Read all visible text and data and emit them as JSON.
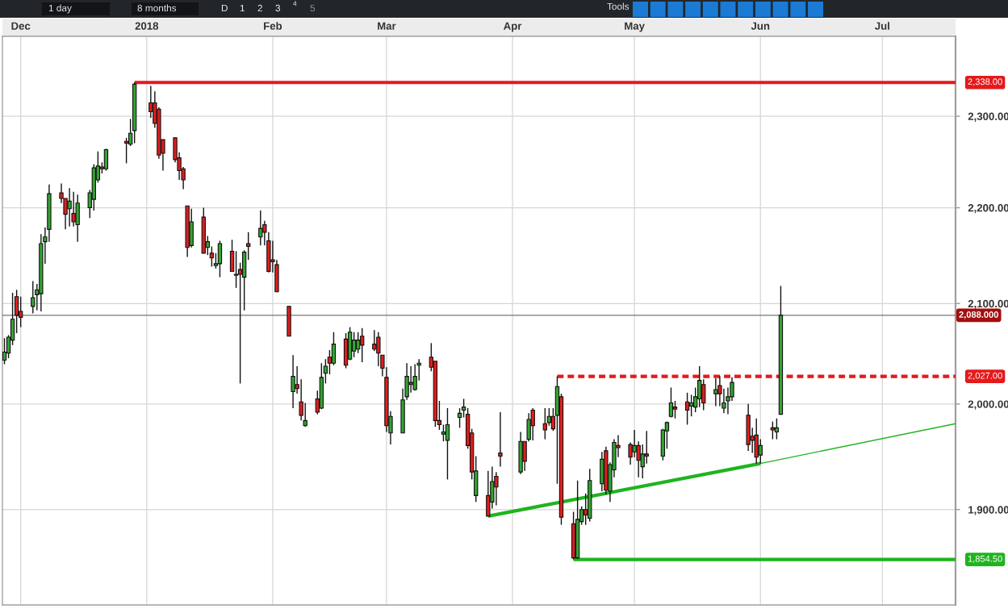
{
  "chart_data": {
    "type": "candlestick",
    "annotations": [
      "1 day",
      "8 months",
      "D",
      "1",
      "2",
      "3",
      "4",
      "5",
      "Tools"
    ],
    "x": [
      "2017-11-27",
      "2017-11-28",
      "2017-11-29",
      "2017-11-30",
      "2017-12-01",
      "2017-12-04",
      "2017-12-05",
      "2017-12-06",
      "2017-12-07",
      "2017-12-08",
      "2017-12-11",
      "2017-12-12",
      "2017-12-13",
      "2017-12-14",
      "2017-12-15",
      "2017-12-18",
      "2017-12-19",
      "2017-12-20",
      "2017-12-21",
      "2017-12-22",
      "2017-12-27",
      "2017-12-28",
      "2017-12-29",
      "2018-01-02",
      "2018-01-03",
      "2018-01-04",
      "2018-01-05",
      "2018-01-08",
      "2018-01-09",
      "2018-01-10",
      "2018-01-11",
      "2018-01-12",
      "2018-01-15",
      "2018-01-16",
      "2018-01-17",
      "2018-01-18",
      "2018-01-19",
      "2018-01-22",
      "2018-01-23",
      "2018-01-24",
      "2018-01-25",
      "2018-01-26",
      "2018-01-29",
      "2018-01-30",
      "2018-01-31",
      "2018-02-01",
      "2018-02-02",
      "2018-02-05",
      "2018-02-06",
      "2018-02-07",
      "2018-02-08",
      "2018-02-09",
      "2018-02-12",
      "2018-02-13",
      "2018-02-14",
      "2018-02-15",
      "2018-02-16",
      "2018-02-19",
      "2018-02-20",
      "2018-02-21",
      "2018-02-22",
      "2018-02-23",
      "2018-02-26",
      "2018-02-27",
      "2018-02-28",
      "2018-03-01",
      "2018-03-02",
      "2018-03-05",
      "2018-03-06",
      "2018-03-07",
      "2018-03-08",
      "2018-03-09",
      "2018-03-12",
      "2018-03-13",
      "2018-03-14",
      "2018-03-15",
      "2018-03-16",
      "2018-03-19",
      "2018-03-20",
      "2018-03-21",
      "2018-03-22",
      "2018-03-23",
      "2018-03-26",
      "2018-03-27",
      "2018-03-28",
      "2018-03-29",
      "2018-04-03",
      "2018-04-04",
      "2018-04-05",
      "2018-04-06",
      "2018-04-09",
      "2018-04-10",
      "2018-04-11",
      "2018-04-12",
      "2018-04-13",
      "2018-04-16",
      "2018-04-17",
      "2018-04-18",
      "2018-04-19",
      "2018-04-20",
      "2018-04-23",
      "2018-04-24",
      "2018-04-25",
      "2018-04-26",
      "2018-04-27",
      "2018-04-30",
      "2018-05-01",
      "2018-05-02",
      "2018-05-03",
      "2018-05-04",
      "2018-05-08",
      "2018-05-09",
      "2018-05-10",
      "2018-05-11",
      "2018-05-14",
      "2018-05-15",
      "2018-05-16",
      "2018-05-17",
      "2018-05-18",
      "2018-05-21",
      "2018-05-22",
      "2018-05-23",
      "2018-05-24",
      "2018-05-25",
      "2018-05-29",
      "2018-05-30",
      "2018-05-31",
      "2018-06-01",
      "2018-06-04",
      "2018-06-05",
      "2018-06-06"
    ],
    "ohlc": [
      [
        2043,
        2065,
        2039,
        2051
      ],
      [
        2050,
        2068,
        2045,
        2066
      ],
      [
        2063,
        2111,
        2058,
        2084
      ],
      [
        2107,
        2114,
        2070,
        2088
      ],
      [
        2092,
        2107,
        2076,
        2086
      ],
      [
        2097,
        2123,
        2090,
        2106
      ],
      [
        2109,
        2120,
        2093,
        2114
      ],
      [
        2110,
        2172,
        2092,
        2162
      ],
      [
        2164,
        2179,
        2141,
        2169
      ],
      [
        2177,
        2225,
        2164,
        2215
      ],
      [
        2216,
        2226,
        2205,
        2210
      ],
      [
        2210,
        2210,
        2177,
        2193
      ],
      [
        2199,
        2221,
        2180,
        2207
      ],
      [
        2194,
        2217,
        2180,
        2185
      ],
      [
        2182,
        2214,
        2164,
        2205
      ],
      [
        2200,
        2219,
        2189,
        2216
      ],
      [
        2209,
        2247,
        2197,
        2243
      ],
      [
        2230,
        2261,
        2227,
        2245
      ],
      [
        2244,
        2249,
        2237,
        2242
      ],
      [
        2242,
        2264,
        2240,
        2263
      ],
      [
        2272,
        2276,
        2248,
        2270
      ],
      [
        2269,
        2297,
        2267,
        2281
      ],
      [
        2284,
        2338,
        2270,
        2336
      ],
      [
        2315,
        2334,
        2298,
        2305
      ],
      [
        2315,
        2328,
        2287,
        2292
      ],
      [
        2308,
        2310,
        2253,
        2257
      ],
      [
        2274,
        2274,
        2240,
        2259
      ],
      [
        2276,
        2276,
        2249,
        2252
      ],
      [
        2254,
        2260,
        2230,
        2240
      ],
      [
        2242,
        2244,
        2220,
        2230
      ],
      [
        2202,
        2202,
        2148,
        2158
      ],
      [
        2160,
        2199,
        2158,
        2185
      ],
      [
        2190,
        2200,
        2152,
        2152
      ],
      [
        2158,
        2170,
        2150,
        2164
      ],
      [
        2152,
        2159,
        2138,
        2147
      ],
      [
        2139,
        2152,
        2136,
        2141
      ],
      [
        2141,
        2165,
        2127,
        2162
      ],
      [
        2154,
        2166,
        2133,
        2133
      ],
      [
        2129,
        2154,
        2116,
        2130
      ],
      [
        2135,
        2142,
        2020,
        2130
      ],
      [
        2127,
        2155,
        2093,
        2153
      ],
      [
        2162,
        2174,
        2145,
        2159
      ],
      [
        2169,
        2197,
        2160,
        2178
      ],
      [
        2182,
        2186,
        2160,
        2174
      ],
      [
        2165,
        2174,
        2132,
        2133
      ],
      [
        2145,
        2165,
        2132,
        2143
      ],
      [
        2140,
        2145,
        2112,
        2112
      ],
      [
        2097,
        2097,
        2067,
        2067
      ],
      [
        2012,
        2048,
        1996,
        2027
      ],
      [
        2019,
        2037,
        2010,
        2015
      ],
      [
        2002,
        2024,
        1984,
        1989
      ],
      [
        1979,
        2001,
        1978,
        1984
      ],
      [
        2005,
        2013,
        1990,
        1992
      ],
      [
        1996,
        2040,
        1995,
        2026
      ],
      [
        2030,
        2044,
        2020,
        2037
      ],
      [
        2046,
        2053,
        2029,
        2040
      ],
      [
        2040,
        2071,
        2038,
        2059
      ],
      [
        2064,
        2070,
        2035,
        2038
      ],
      [
        2044,
        2076,
        2043,
        2071
      ],
      [
        2052,
        2071,
        2046,
        2063
      ],
      [
        2054,
        2071,
        2050,
        2063
      ],
      [
        2067,
        2075,
        2041,
        2058
      ],
      [
        2059,
        2073,
        2052,
        2054
      ],
      [
        2066,
        2071,
        2037,
        2050
      ],
      [
        2048,
        2048,
        2027,
        2035
      ],
      [
        2026,
        2036,
        1973,
        1979
      ],
      [
        1972,
        1993,
        1961,
        1988
      ],
      [
        1972,
        2015,
        1972,
        2004
      ],
      [
        2007,
        2040,
        2004,
        2027
      ],
      [
        2021,
        2037,
        2011,
        2019
      ],
      [
        2014,
        2039,
        2013,
        2027
      ],
      [
        2038,
        2044,
        2023,
        2040
      ],
      [
        2046,
        2060,
        2032,
        2036
      ],
      [
        2042,
        2042,
        1978,
        1984
      ],
      [
        1984,
        2003,
        1975,
        1980
      ],
      [
        1971,
        1980,
        1964,
        1973
      ],
      [
        1965,
        1996,
        1928,
        1980
      ],
      [
        1987,
        1996,
        1977,
        1991
      ],
      [
        1994,
        2005,
        1987,
        1997
      ],
      [
        1990,
        1996,
        1957,
        1960
      ],
      [
        1972,
        1976,
        1928,
        1935
      ],
      [
        1913,
        1950,
        1907,
        1936
      ],
      [
        1913,
        1936,
        1894,
        1894
      ],
      [
        1907,
        1940,
        1901,
        1926
      ],
      [
        1931,
        1935,
        1904,
        1921
      ],
      [
        1953,
        1992,
        1940,
        1950
      ],
      [
        1935,
        1973,
        1933,
        1964
      ],
      [
        1964,
        1964,
        1936,
        1945
      ],
      [
        1966,
        1991,
        1964,
        1985
      ],
      [
        1994,
        1996,
        1965,
        1979
      ],
      [
        1981,
        1996,
        1966,
        1975
      ],
      [
        1982,
        1996,
        1979,
        1988
      ],
      [
        1988,
        1996,
        1974,
        1976
      ],
      [
        1989,
        2027,
        1924,
        2017
      ],
      [
        2007,
        2010,
        1886,
        1893
      ],
      [
        1887,
        1898,
        1854.5,
        1856
      ],
      [
        1856,
        1927,
        1855,
        1891
      ],
      [
        1889,
        1903,
        1886,
        1900
      ],
      [
        1900,
        1915,
        1886,
        1895
      ],
      [
        1892,
        1938,
        1889,
        1927
      ],
      [
        1924,
        1954,
        1917,
        1947
      ],
      [
        1955,
        1959,
        1914,
        1918
      ],
      [
        1917,
        1944,
        1907,
        1942
      ],
      [
        1937,
        1966,
        1930,
        1963
      ],
      [
        1960,
        1970,
        1949,
        1958
      ],
      [
        1961,
        1963,
        1942,
        1949
      ],
      [
        1954,
        1975,
        1949,
        1960
      ],
      [
        1960,
        1964,
        1930,
        1946
      ],
      [
        1940,
        1961,
        1929,
        1952
      ],
      [
        1952,
        1974,
        1943,
        1950
      ],
      [
        1950,
        1976,
        1946,
        1975
      ],
      [
        1974,
        1983,
        1957,
        1982
      ],
      [
        1988,
        2016,
        1987,
        2001
      ],
      [
        1997,
        2003,
        1986,
        1995
      ],
      [
        2002,
        2011,
        1980,
        1994
      ],
      [
        1998,
        2009,
        1988,
        2001
      ],
      [
        1997,
        2016,
        1992,
        2007
      ],
      [
        2005,
        2037,
        1997,
        2023
      ],
      [
        2019,
        2024,
        1994,
        2001
      ],
      [
        2010,
        2025,
        1998,
        2014
      ],
      [
        2018,
        2027,
        1998,
        2010
      ],
      [
        1996,
        2015,
        1991,
        2001
      ],
      [
        2003,
        2016,
        1990,
        2007
      ],
      [
        2007,
        2026,
        2003,
        2021
      ],
      [
        1989,
        2000,
        1955,
        1961
      ],
      [
        1969,
        1977,
        1953,
        1965
      ],
      [
        1970,
        1986,
        1943,
        1949
      ],
      [
        1951,
        1966,
        1943,
        1960
      ],
      [
        1977,
        1983,
        1966,
        1975
      ],
      [
        1973,
        1986,
        1966,
        1977
      ],
      [
        1990,
        2118,
        1990,
        2088
      ]
    ],
    "colors": [
      "#33a532",
      "#33a532",
      "#33a532",
      "#e01e1e",
      "#e01e1e",
      "#33a532",
      "#33a532",
      "#33a532",
      "#33a532",
      "#33a532",
      "#e01e1e",
      "#e01e1e",
      "#33a532",
      "#e01e1e",
      "#33a532",
      "#33a532",
      "#33a532",
      "#33a532",
      "#e01e1e",
      "#33a532",
      "#e01e1e",
      "#33a532",
      "#33a532",
      "#e01e1e",
      "#e01e1e",
      "#e01e1e",
      "#e01e1e",
      "#e01e1e",
      "#e01e1e",
      "#e01e1e",
      "#e01e1e",
      "#33a532",
      "#e01e1e",
      "#33a532",
      "#e01e1e",
      "#33a532",
      "#33a532",
      "#e01e1e",
      "#33a532",
      "#e01e1e",
      "#33a532",
      "#e01e1e",
      "#33a532",
      "#e01e1e",
      "#e01e1e",
      "#e01e1e",
      "#e01e1e",
      "#e01e1e",
      "#33a532",
      "#e01e1e",
      "#e01e1e",
      "#33a532",
      "#e01e1e",
      "#33a532",
      "#33a532",
      "#e01e1e",
      "#33a532",
      "#e01e1e",
      "#33a532",
      "#33a532",
      "#33a532",
      "#e01e1e",
      "#e01e1e",
      "#e01e1e",
      "#e01e1e",
      "#e01e1e",
      "#33a532",
      "#33a532",
      "#33a532",
      "#e01e1e",
      "#33a532",
      "#33a532",
      "#e01e1e",
      "#e01e1e",
      "#e01e1e",
      "#33a532",
      "#33a532",
      "#33a532",
      "#33a532",
      "#e01e1e",
      "#e01e1e",
      "#33a532",
      "#e01e1e",
      "#33a532",
      "#e01e1e",
      "#e01e1e",
      "#33a532",
      "#e01e1e",
      "#33a532",
      "#e01e1e",
      "#e01e1e",
      "#33a532",
      "#e01e1e",
      "#33a532",
      "#e01e1e",
      "#e01e1e",
      "#33a532",
      "#33a532",
      "#e01e1e",
      "#33a532",
      "#33a532",
      "#e01e1e",
      "#33a532",
      "#33a532",
      "#e01e1e",
      "#e01e1e",
      "#33a532",
      "#e01e1e",
      "#33a532",
      "#e01e1e",
      "#33a532",
      "#33a532",
      "#33a532",
      "#e01e1e",
      "#e01e1e",
      "#33a532",
      "#33a532",
      "#33a532",
      "#e01e1e",
      "#33a532",
      "#e01e1e",
      "#33a532",
      "#33a532",
      "#33a532",
      "#e01e1e",
      "#e01e1e",
      "#e01e1e",
      "#33a532",
      "#e01e1e",
      "#33a532",
      "#33a532"
    ],
    "series": [
      {
        "type": "line",
        "name": "2,338.00",
        "color": "#e31a1c",
        "x": [
          "2017-12-29",
          "2018-07-19"
        ],
        "values": [
          2338,
          2338
        ]
      },
      {
        "type": "line",
        "name": "2,027.00",
        "color": "#e31a1c",
        "line_style": "dashed",
        "x": [
          "2018-04-12",
          "2018-07-19"
        ],
        "values": [
          2027,
          2027
        ]
      },
      {
        "type": "line",
        "name": "1,854.50",
        "color": "#1fb41f",
        "x": [
          "2018-04-16",
          "2018-07-19"
        ],
        "values": [
          1854.5,
          1854.5
        ]
      },
      {
        "type": "line",
        "color": "#1fb41f",
        "x": [
          "2018-03-26",
          "2018-06-01"
        ],
        "values": [
          1894,
          1943
        ]
      },
      {
        "type": "line",
        "color": "#1fb41f",
        "x": [
          "2018-06-01",
          "2018-07-19"
        ],
        "values": [
          1943,
          1981
        ]
      }
    ],
    "ref_lines": [
      {
        "axis": "y",
        "value": 2088,
        "label": "2,088.000",
        "color": "#777777"
      }
    ],
    "xlim": [
      "2017-11-26T12:00",
      "2018-07-19"
    ],
    "xticks": [
      {
        "value": "2017-12-01",
        "label": "Dec"
      },
      {
        "value": "2018-01-01",
        "label": "2018"
      },
      {
        "value": "2018-02-01",
        "label": "Feb"
      },
      {
        "value": "2018-03-01",
        "label": "Mar"
      },
      {
        "value": "2018-04-01",
        "label": "Apr"
      },
      {
        "value": "2018-05-01",
        "label": "May"
      },
      {
        "value": "2018-06-01",
        "label": "Jun"
      },
      {
        "value": "2018-07-01",
        "label": "Jul"
      }
    ],
    "ylim": [
      1814,
      2391
    ],
    "yticks": [
      {
        "value": 1900,
        "label": "1,900.00"
      },
      {
        "value": 2000,
        "label": "2,000.00"
      },
      {
        "value": 2100,
        "label": "2,100.00"
      },
      {
        "value": 2200,
        "label": "2,200.00"
      },
      {
        "value": 2300,
        "label": "2,300.00"
      }
    ],
    "log": true,
    "grid": true
  }
}
